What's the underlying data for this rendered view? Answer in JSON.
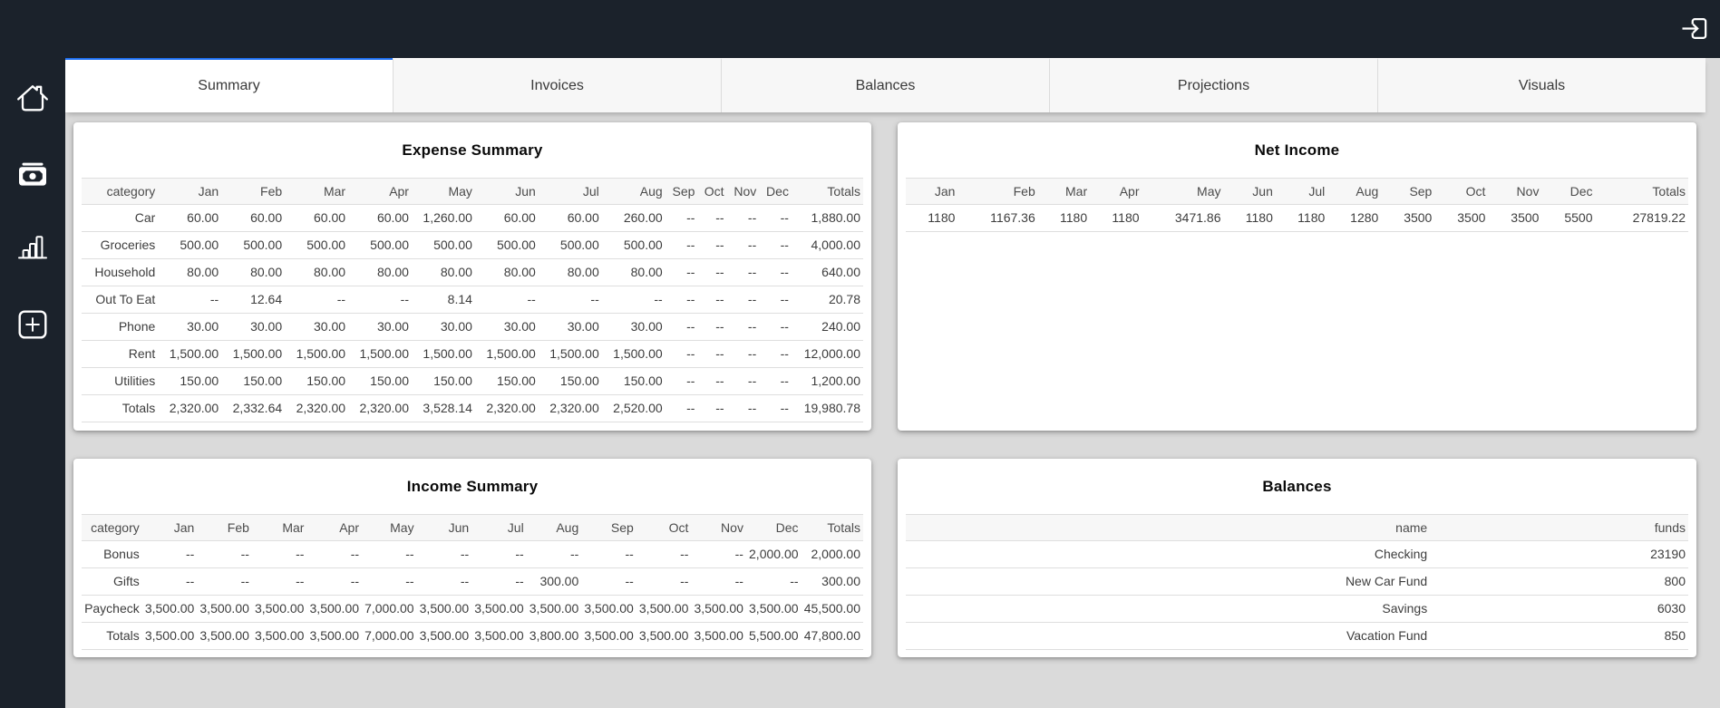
{
  "app": {
    "accent_color": "#1e6ff0",
    "dark_color": "#1b222b",
    "background_color": "#dadada"
  },
  "topbar": {
    "login_icon": "login-icon"
  },
  "sidebar": {
    "items": [
      {
        "name": "home",
        "icon": "home-icon"
      },
      {
        "name": "cash",
        "icon": "cash-icon"
      },
      {
        "name": "bar-chart",
        "icon": "bar-chart-icon"
      },
      {
        "name": "add",
        "icon": "add-box-icon"
      }
    ]
  },
  "tabs": [
    {
      "label": "Summary",
      "active": true
    },
    {
      "label": "Invoices",
      "active": false
    },
    {
      "label": "Balances",
      "active": false
    },
    {
      "label": "Projections",
      "active": false
    },
    {
      "label": "Visuals",
      "active": false
    }
  ],
  "cards": {
    "expense_summary": {
      "title": "Expense Summary",
      "columns": [
        "category",
        "Jan",
        "Feb",
        "Mar",
        "Apr",
        "May",
        "Jun",
        "Jul",
        "Aug",
        "Sep",
        "Oct",
        "Nov",
        "Dec",
        "Totals"
      ],
      "rows": [
        [
          "Car",
          "60.00",
          "60.00",
          "60.00",
          "60.00",
          "1,260.00",
          "60.00",
          "60.00",
          "260.00",
          "--",
          "--",
          "--",
          "--",
          "1,880.00"
        ],
        [
          "Groceries",
          "500.00",
          "500.00",
          "500.00",
          "500.00",
          "500.00",
          "500.00",
          "500.00",
          "500.00",
          "--",
          "--",
          "--",
          "--",
          "4,000.00"
        ],
        [
          "Household",
          "80.00",
          "80.00",
          "80.00",
          "80.00",
          "80.00",
          "80.00",
          "80.00",
          "80.00",
          "--",
          "--",
          "--",
          "--",
          "640.00"
        ],
        [
          "Out To Eat",
          "--",
          "12.64",
          "--",
          "--",
          "8.14",
          "--",
          "--",
          "--",
          "--",
          "--",
          "--",
          "--",
          "20.78"
        ],
        [
          "Phone",
          "30.00",
          "30.00",
          "30.00",
          "30.00",
          "30.00",
          "30.00",
          "30.00",
          "30.00",
          "--",
          "--",
          "--",
          "--",
          "240.00"
        ],
        [
          "Rent",
          "1,500.00",
          "1,500.00",
          "1,500.00",
          "1,500.00",
          "1,500.00",
          "1,500.00",
          "1,500.00",
          "1,500.00",
          "--",
          "--",
          "--",
          "--",
          "12,000.00"
        ],
        [
          "Utilities",
          "150.00",
          "150.00",
          "150.00",
          "150.00",
          "150.00",
          "150.00",
          "150.00",
          "150.00",
          "--",
          "--",
          "--",
          "--",
          "1,200.00"
        ],
        [
          "Totals",
          "2,320.00",
          "2,332.64",
          "2,320.00",
          "2,320.00",
          "3,528.14",
          "2,320.00",
          "2,320.00",
          "2,520.00",
          "--",
          "--",
          "--",
          "--",
          "19,980.78"
        ]
      ]
    },
    "net_income": {
      "title": "Net Income",
      "columns": [
        "Jan",
        "Feb",
        "Mar",
        "Apr",
        "May",
        "Jun",
        "Jul",
        "Aug",
        "Sep",
        "Oct",
        "Nov",
        "Dec",
        "Totals"
      ],
      "rows": [
        [
          "1180",
          "1167.36",
          "1180",
          "1180",
          "3471.86",
          "1180",
          "1180",
          "1280",
          "3500",
          "3500",
          "3500",
          "5500",
          "27819.22"
        ]
      ]
    },
    "income_summary": {
      "title": "Income Summary",
      "columns": [
        "category",
        "Jan",
        "Feb",
        "Mar",
        "Apr",
        "May",
        "Jun",
        "Jul",
        "Aug",
        "Sep",
        "Oct",
        "Nov",
        "Dec",
        "Totals"
      ],
      "rows": [
        [
          "Bonus",
          "--",
          "--",
          "--",
          "--",
          "--",
          "--",
          "--",
          "--",
          "--",
          "--",
          "--",
          "2,000.00",
          "2,000.00"
        ],
        [
          "Gifts",
          "--",
          "--",
          "--",
          "--",
          "--",
          "--",
          "--",
          "300.00",
          "--",
          "--",
          "--",
          "--",
          "300.00"
        ],
        [
          "Paycheck",
          "3,500.00",
          "3,500.00",
          "3,500.00",
          "3,500.00",
          "7,000.00",
          "3,500.00",
          "3,500.00",
          "3,500.00",
          "3,500.00",
          "3,500.00",
          "3,500.00",
          "3,500.00",
          "45,500.00"
        ],
        [
          "Totals",
          "3,500.00",
          "3,500.00",
          "3,500.00",
          "3,500.00",
          "7,000.00",
          "3,500.00",
          "3,500.00",
          "3,800.00",
          "3,500.00",
          "3,500.00",
          "3,500.00",
          "5,500.00",
          "47,800.00"
        ]
      ]
    },
    "balances": {
      "title": "Balances",
      "columns": [
        "name",
        "funds"
      ],
      "rows": [
        [
          "Checking",
          "23190"
        ],
        [
          "New Car Fund",
          "800"
        ],
        [
          "Savings",
          "6030"
        ],
        [
          "Vacation Fund",
          "850"
        ]
      ]
    }
  }
}
